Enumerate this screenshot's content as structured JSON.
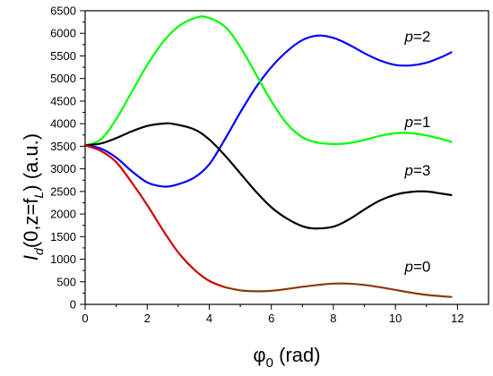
{
  "chart_data": {
    "type": "line",
    "title": "",
    "xlabel": {
      "base": "φ",
      "sub": "0",
      "rest": " (rad)"
    },
    "ylabel": {
      "p1": "I",
      "sub1": "d",
      "p2": "(0,z=f",
      "sub2": "L",
      "p3": ") (a.u.)"
    },
    "xlim": [
      0,
      13
    ],
    "ylim": [
      0,
      6500
    ],
    "xticks": [
      0,
      2,
      4,
      6,
      8,
      10,
      12
    ],
    "yticks": [
      0,
      500,
      1000,
      1500,
      2000,
      2500,
      3000,
      3500,
      4000,
      4500,
      5000,
      5500,
      6000,
      6500
    ],
    "grid": false,
    "series": [
      {
        "name": "p=2",
        "label_italic": "p",
        "label_rest": "=2",
        "label_at": [
          10.3,
          5820
        ],
        "color": "#0000ff",
        "x": [
          0,
          0.5,
          1,
          1.5,
          2,
          2.5,
          2.9,
          3.5,
          4,
          4.5,
          5,
          5.5,
          6,
          6.5,
          7,
          7.5,
          8,
          8.5,
          9,
          9.5,
          10,
          10.5,
          11,
          11.5,
          11.8
        ],
        "y": [
          3520,
          3450,
          3250,
          2950,
          2700,
          2610,
          2640,
          2800,
          3100,
          3650,
          4250,
          4800,
          5250,
          5600,
          5850,
          5950,
          5900,
          5750,
          5560,
          5400,
          5300,
          5290,
          5350,
          5480,
          5580
        ]
      },
      {
        "name": "p=1",
        "label_italic": "p",
        "label_rest": "=1",
        "label_at": [
          10.3,
          3920
        ],
        "color": "#00ff00",
        "x": [
          0,
          0.5,
          1,
          1.5,
          2,
          2.5,
          3,
          3.5,
          3.9,
          4.5,
          5,
          5.5,
          6,
          6.5,
          7,
          7.5,
          8,
          8.5,
          9,
          9.5,
          10,
          10.5,
          11,
          11.5,
          11.8
        ],
        "y": [
          3520,
          3650,
          4100,
          4700,
          5300,
          5800,
          6150,
          6330,
          6360,
          6150,
          5700,
          5100,
          4500,
          4000,
          3700,
          3580,
          3550,
          3570,
          3640,
          3730,
          3790,
          3790,
          3740,
          3660,
          3600
        ]
      },
      {
        "name": "p=3",
        "label_italic": "p",
        "label_rest": "=3",
        "label_at": [
          10.3,
          2850
        ],
        "color": "#000000",
        "x": [
          0,
          0.5,
          1,
          1.5,
          2,
          2.5,
          2.8,
          3.5,
          4,
          4.5,
          5,
          5.5,
          6,
          6.5,
          7,
          7.4,
          8,
          8.5,
          9,
          9.5,
          10,
          10.5,
          11,
          11.5,
          11.8
        ],
        "y": [
          3520,
          3560,
          3680,
          3830,
          3950,
          4000,
          4000,
          3880,
          3650,
          3300,
          2900,
          2500,
          2150,
          1900,
          1730,
          1680,
          1720,
          1880,
          2100,
          2300,
          2430,
          2490,
          2500,
          2450,
          2420
        ]
      },
      {
        "name": "p=0",
        "label_italic": "p",
        "label_rest": "=0",
        "label_at": [
          10.3,
          720
        ],
        "color": "#cc0000",
        "tail_color": "#8b3a0a",
        "x": [
          0,
          0.5,
          1,
          1.5,
          2,
          2.5,
          3,
          3.5,
          4,
          4.5,
          5,
          5.5,
          6,
          6.5,
          7,
          7.5,
          8,
          8.5,
          9,
          9.5,
          10,
          10.5,
          11,
          11.5,
          11.8
        ],
        "y": [
          3520,
          3400,
          3150,
          2700,
          2200,
          1650,
          1150,
          780,
          520,
          380,
          310,
          290,
          300,
          340,
          390,
          430,
          460,
          460,
          430,
          380,
          320,
          260,
          210,
          180,
          165
        ]
      }
    ]
  }
}
